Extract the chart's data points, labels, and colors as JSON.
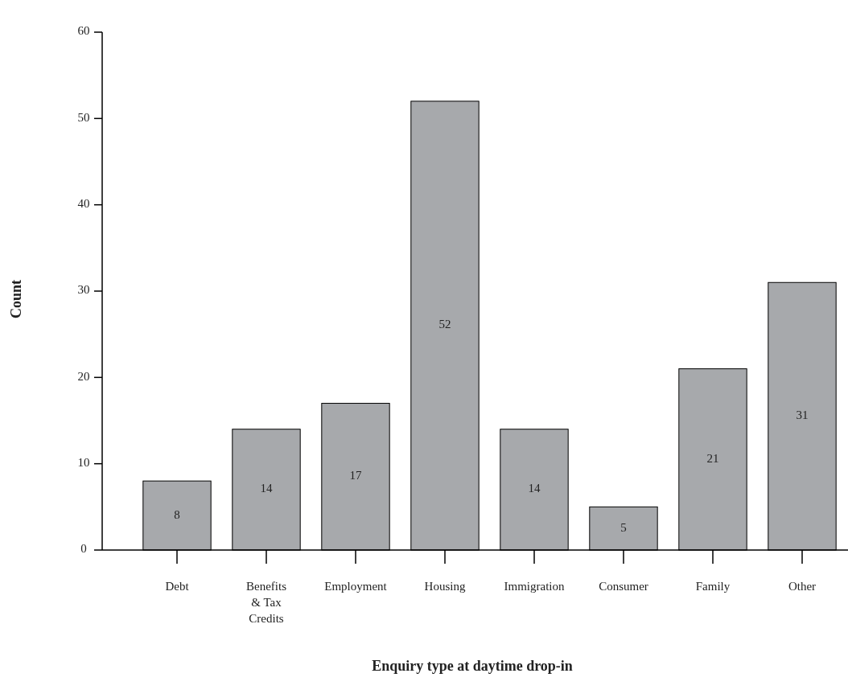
{
  "chart_data": {
    "type": "bar",
    "xlabel": "Enquiry type at daytime drop-in",
    "ylabel": "Count",
    "categories": [
      "Debt",
      "Benefits & Tax Credits",
      "Employment",
      "Housing",
      "Immigration",
      "Consumer",
      "Family",
      "Other"
    ],
    "values": [
      8,
      14,
      17,
      52,
      14,
      5,
      21,
      31
    ],
    "color": "#a7a9ac",
    "ylim": [
      0,
      60
    ],
    "yticks": [
      0,
      10,
      20,
      30,
      40,
      50,
      60
    ],
    "data_labels": true,
    "grid": false
  }
}
